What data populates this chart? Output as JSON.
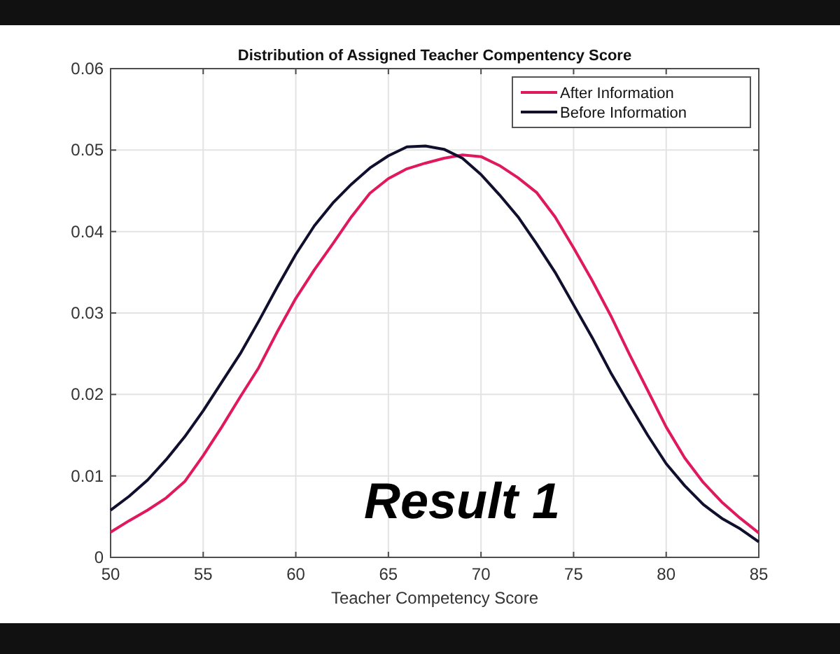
{
  "chart_data": {
    "type": "line",
    "title": "Distribution of Assigned Teacher Compentency Score",
    "xlabel": "Teacher Competency Score",
    "annotations": [
      "Result 1"
    ],
    "x": [
      50,
      51,
      52,
      53,
      54,
      55,
      56,
      57,
      58,
      59,
      60,
      61,
      62,
      63,
      64,
      65,
      66,
      67,
      68,
      69,
      70,
      71,
      72,
      73,
      74,
      75,
      76,
      77,
      78,
      79,
      80,
      81,
      82,
      83,
      84,
      85
    ],
    "series": [
      {
        "name": "After Information",
        "color": "#e0195f",
        "values": [
          0.0031,
          0.0045,
          0.0058,
          0.0073,
          0.0093,
          0.0125,
          0.016,
          0.0197,
          0.0233,
          0.0277,
          0.0318,
          0.0353,
          0.0385,
          0.0418,
          0.0447,
          0.0465,
          0.0477,
          0.0484,
          0.049,
          0.0494,
          0.0492,
          0.0481,
          0.0466,
          0.0448,
          0.0418,
          0.038,
          0.034,
          0.0297,
          0.025,
          0.0205,
          0.016,
          0.0122,
          0.0092,
          0.0068,
          0.0048,
          0.003
        ]
      },
      {
        "name": "Before Information",
        "color": "#10102e",
        "values": [
          0.0058,
          0.0075,
          0.0095,
          0.012,
          0.0148,
          0.018,
          0.0215,
          0.025,
          0.029,
          0.0332,
          0.0372,
          0.0407,
          0.0435,
          0.0458,
          0.0478,
          0.0493,
          0.0504,
          0.0505,
          0.0501,
          0.049,
          0.047,
          0.0445,
          0.0418,
          0.0385,
          0.035,
          0.031,
          0.027,
          0.0227,
          0.0188,
          0.015,
          0.0115,
          0.0088,
          0.0065,
          0.0048,
          0.0035,
          0.0019
        ]
      }
    ],
    "xlim": [
      50,
      85
    ],
    "xticks": [
      50,
      55,
      60,
      65,
      70,
      75,
      80,
      85
    ],
    "ylim": [
      0,
      0.06
    ],
    "yticks": [
      0,
      0.01,
      0.02,
      0.03,
      0.04,
      0.05,
      0.06
    ],
    "grid": true,
    "legend": "top right",
    "marker": "none",
    "line_style": "solid"
  }
}
